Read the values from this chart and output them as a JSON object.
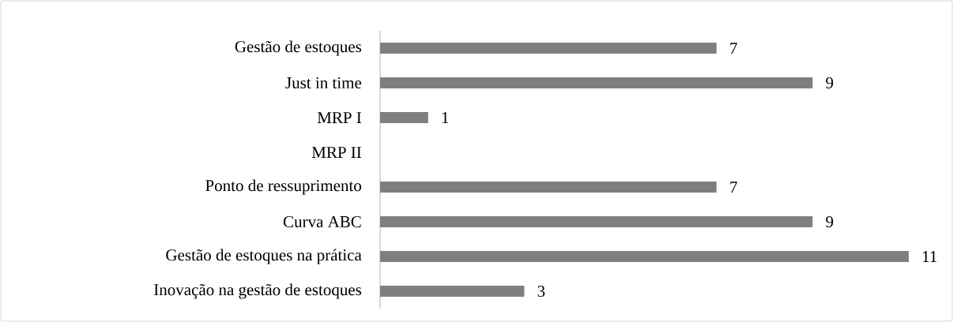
{
  "chart_data": {
    "type": "bar",
    "orientation": "horizontal",
    "tick_labels": "y",
    "data_labels": true,
    "color": "#7f7f7f",
    "categories": [
      "Gestão de estoques",
      "Just in time",
      "MRP I",
      "MRP II",
      "Ponto de ressuprimento",
      "Curva ABC",
      "Gestão de estoques na prática",
      "Inovação na gestão de estoques"
    ],
    "values": [
      7,
      9,
      1,
      null,
      7,
      9,
      11,
      3
    ]
  }
}
